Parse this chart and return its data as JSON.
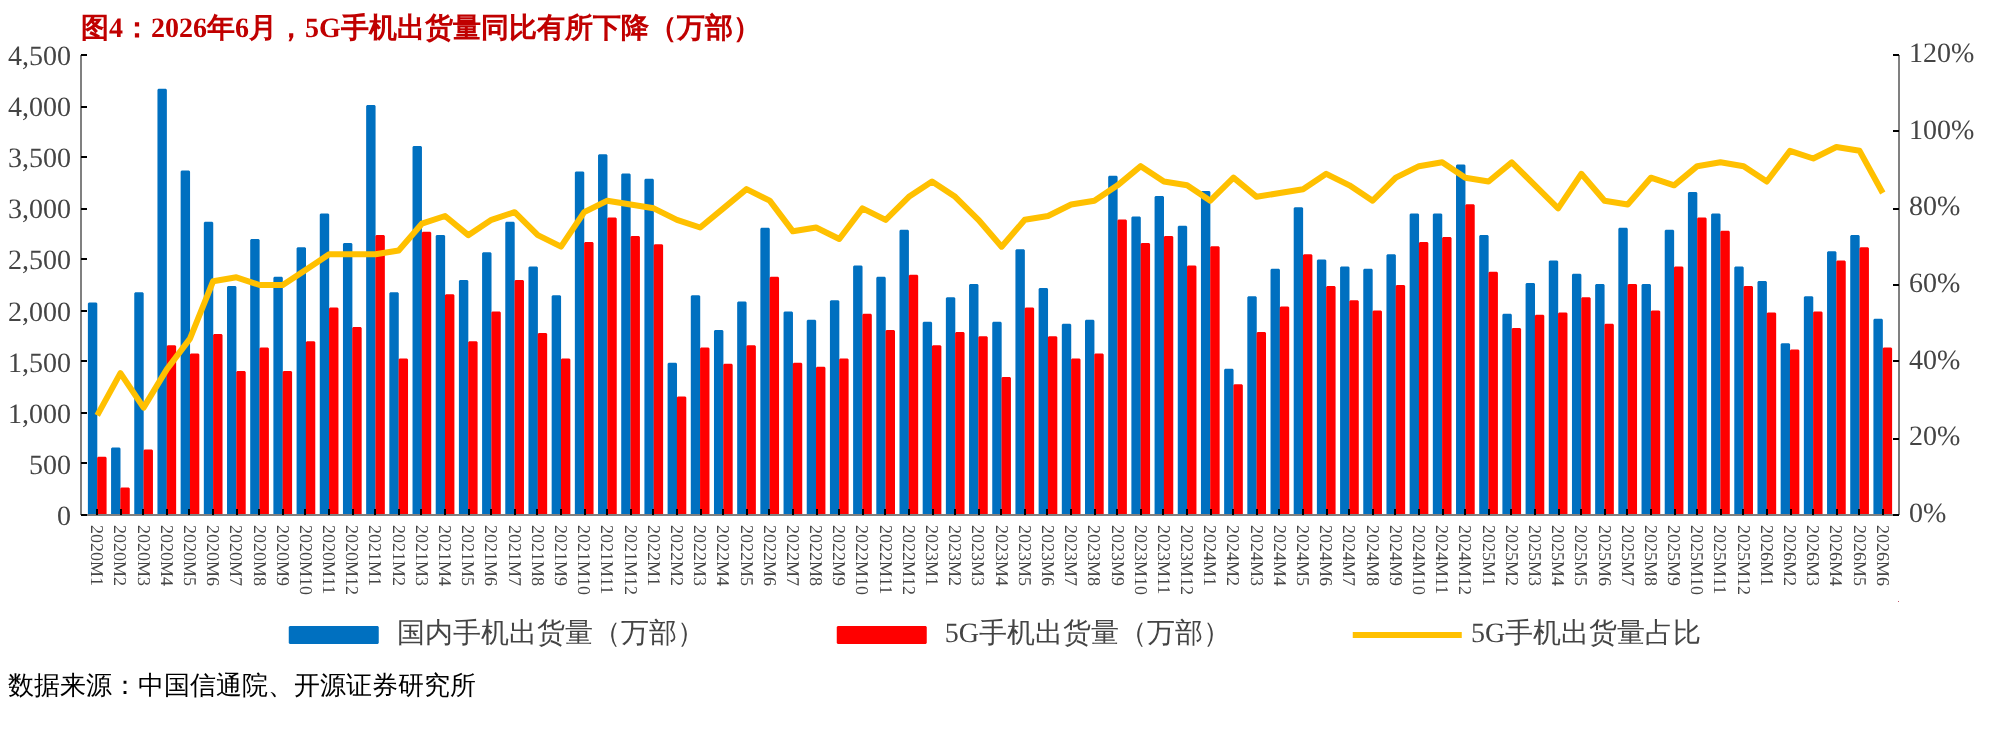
{
  "chart_data": {
    "type": "bar",
    "title": "图4：2026年6月，5G手机出货量同比有所下降（万部）",
    "categories": [
      "2020M1",
      "2020M2",
      "2020M3",
      "2020M4",
      "2020M5",
      "2020M6",
      "2020M7",
      "2020M8",
      "2020M9",
      "2020M10",
      "2020M11",
      "2020M12",
      "2021M1",
      "2021M2",
      "2021M3",
      "2021M4",
      "2021M5",
      "2021M6",
      "2021M7",
      "2021M8",
      "2021M9",
      "2021M10",
      "2021M11",
      "2021M12",
      "2022M1",
      "2022M2",
      "2022M3",
      "2022M4",
      "2022M5",
      "2022M6",
      "2022M7",
      "2022M8",
      "2022M9",
      "2022M10",
      "2022M11",
      "2022M12",
      "2023M1",
      "2023M2",
      "2023M3",
      "2023M4",
      "2023M5",
      "2023M6",
      "2023M7",
      "2023M8",
      "2023M9",
      "2023M10",
      "2023M11",
      "2023M12",
      "2024M1",
      "2024M2",
      "2024M3",
      "2024M4",
      "2024M5",
      "2024M6",
      "2024M7",
      "2024M8",
      "2024M9",
      "2024M10",
      "2024M11",
      "2024M12",
      "2025M1",
      "2025M2",
      "2025M3",
      "2025M4",
      "2025M5",
      "2025M6",
      "2025M7",
      "2025M8",
      "2025M9",
      "2025M10",
      "2025M11",
      "2025M12",
      "2026M1",
      "2026M2",
      "2026M3",
      "2026M4",
      "2026M5",
      "2026M6"
    ],
    "series": [
      {
        "name": "国内手机出货量（万部）",
        "type": "bar",
        "color": "#0070c0",
        "values": [
          2070,
          650,
          2170,
          4160,
          3360,
          2860,
          2230,
          2690,
          2320,
          2610,
          2940,
          2650,
          4000,
          2170,
          3600,
          2730,
          2290,
          2560,
          2860,
          2420,
          2140,
          3350,
          3520,
          3330,
          3280,
          1480,
          2140,
          1800,
          2080,
          2800,
          1980,
          1900,
          2090,
          2430,
          2320,
          2780,
          1880,
          2120,
          2250,
          1880,
          2590,
          2210,
          1860,
          1900,
          3310,
          2910,
          3110,
          2820,
          3160,
          1420,
          2130,
          2400,
          3000,
          2490,
          2420,
          2400,
          2540,
          2940,
          2940,
          3420,
          2730,
          1960,
          2260,
          2480,
          2350,
          2250,
          2800,
          2250,
          2780,
          3150,
          2940,
          2420,
          2280,
          1670,
          2130,
          2570,
          2730,
          1910
        ]
      },
      {
        "name": "5G手机出货量（万部）",
        "type": "bar",
        "color": "#ff0000",
        "values": [
          560,
          260,
          630,
          1650,
          1570,
          1760,
          1400,
          1630,
          1400,
          1690,
          2020,
          1830,
          2730,
          1520,
          2760,
          2150,
          1690,
          1980,
          2290,
          1770,
          1520,
          2660,
          2900,
          2720,
          2640,
          1150,
          1630,
          1470,
          1650,
          2320,
          1480,
          1440,
          1520,
          1960,
          1800,
          2340,
          1650,
          1780,
          1740,
          1340,
          2020,
          1740,
          1520,
          1570,
          2880,
          2650,
          2720,
          2430,
          2620,
          1270,
          1780,
          2030,
          2540,
          2230,
          2090,
          1990,
          2240,
          2660,
          2710,
          3030,
          2370,
          1820,
          1950,
          1970,
          2120,
          1860,
          2250,
          1990,
          2420,
          2900,
          2770,
          2230,
          1970,
          1610,
          1980,
          2480,
          2610,
          1630
        ]
      },
      {
        "name": "5G手机出货量占比",
        "type": "line",
        "axis": "y2",
        "color": "#ffc000",
        "values": [
          26,
          37,
          28,
          38,
          46,
          61,
          62,
          60,
          60,
          64,
          68,
          68,
          68,
          69,
          76,
          78,
          73,
          77,
          79,
          73,
          70,
          79,
          82,
          81,
          80,
          77,
          75,
          80,
          85,
          82,
          74,
          75,
          72,
          80,
          77,
          83,
          87,
          83,
          77,
          70,
          77,
          78,
          81,
          82,
          86,
          91,
          87,
          86,
          82,
          88,
          83,
          84,
          85,
          89,
          86,
          82,
          88,
          91,
          92,
          88,
          87,
          92,
          86,
          80,
          89,
          82,
          81,
          88,
          86,
          91,
          92,
          91,
          87,
          95,
          93,
          96,
          95,
          84
        ]
      }
    ],
    "ylim": [
      0,
      4500
    ],
    "yticks": [
      {
        "value": 0,
        "label": "0"
      },
      {
        "value": 500,
        "label": "500"
      },
      {
        "value": 1000,
        "label": "1,000"
      },
      {
        "value": 1500,
        "label": "1,500"
      },
      {
        "value": 2000,
        "label": "2,000"
      },
      {
        "value": 2500,
        "label": "2,500"
      },
      {
        "value": 3000,
        "label": "3,000"
      },
      {
        "value": 3500,
        "label": "3,500"
      },
      {
        "value": 4000,
        "label": "4,000"
      },
      {
        "value": 4500,
        "label": "4,500"
      }
    ],
    "y2lim": [
      0,
      120
    ],
    "y2ticks": [
      {
        "value": 0,
        "label": "0%"
      },
      {
        "value": 20,
        "label": "20%"
      },
      {
        "value": 40,
        "label": "40%"
      },
      {
        "value": 60,
        "label": "60%"
      },
      {
        "value": 80,
        "label": "80%"
      },
      {
        "value": 100,
        "label": "100%"
      },
      {
        "value": 120,
        "label": "120%"
      }
    ],
    "grid": false,
    "legend": "bottom",
    "annotations": [
      "数据来源：中国信通院、开源证券研究所"
    ]
  }
}
